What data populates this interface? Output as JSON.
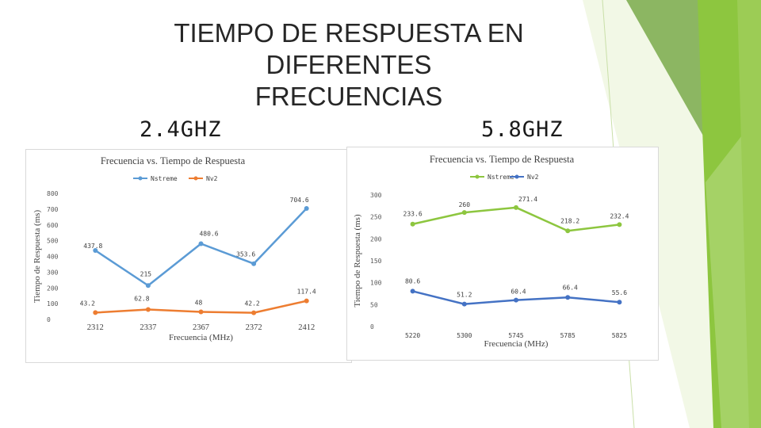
{
  "slide": {
    "title_line1": "TIEMPO DE RESPUESTA EN DIFERENTES",
    "title_line2": "FRECUENCIAS",
    "section_left": "2.4GHZ",
    "section_right": "5.8GHZ",
    "colors": {
      "series1": "#5b9bd5",
      "series2": "#ed7d31",
      "accent_green": "#8dc63f"
    }
  },
  "chart_data": [
    {
      "type": "line",
      "title": "Frecuencia vs. Tiempo de Respuesta",
      "xlabel": "Frecuencia (MHz)",
      "ylabel": "Tiempo de Respuesta (ms)",
      "categories": [
        "2312",
        "2337",
        "2367",
        "2372",
        "2412"
      ],
      "ylim": [
        0,
        800
      ],
      "yticks": [
        0,
        100,
        200,
        300,
        400,
        500,
        600,
        700,
        800
      ],
      "legend_position": "top",
      "series": [
        {
          "name": "Nstreme",
          "color": "#5b9bd5",
          "values": [
            437.8,
            215,
            480.6,
            353.6,
            704.6
          ],
          "labels": [
            "437.8",
            "215",
            "480.6",
            "353.6",
            "704.6"
          ]
        },
        {
          "name": "Nv2",
          "color": "#ed7d31",
          "values": [
            43.2,
            62.8,
            48,
            42.2,
            117.4
          ],
          "labels": [
            "43.2",
            "62.8",
            "48",
            "42.2",
            "117.4"
          ]
        }
      ]
    },
    {
      "type": "line",
      "title": "Frecuencia vs. Tiempo de Respuesta",
      "xlabel": "Frecuencia (MHz)",
      "ylabel": "Tiempo de Respuesta (ms)",
      "categories": [
        "5220",
        "5300",
        "5745",
        "5785",
        "5825"
      ],
      "ylim": [
        0,
        300
      ],
      "yticks": [
        0,
        50,
        100,
        150,
        200,
        250,
        300
      ],
      "legend_position": "top",
      "series": [
        {
          "name": "Nstreme",
          "color": "#8dc63f",
          "values": [
            233.6,
            260,
            271.4,
            218.2,
            232.4
          ],
          "labels": [
            "233.6",
            "260",
            "271.4",
            "218.2",
            "232.4"
          ]
        },
        {
          "name": "Nv2",
          "color": "#4472c4",
          "values": [
            80.6,
            51.2,
            60.4,
            66.4,
            55.6
          ],
          "labels": [
            "80.6",
            "51.2",
            "60.4",
            "66.4",
            "55.6"
          ]
        }
      ]
    }
  ]
}
